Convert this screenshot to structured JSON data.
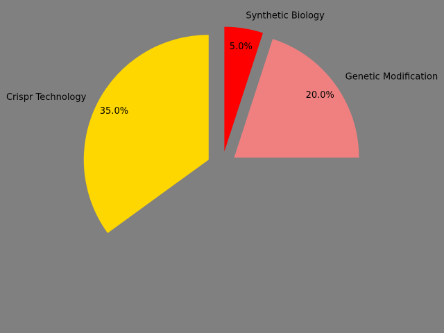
{
  "chart_data": {
    "type": "pie",
    "title": "",
    "background": "#808080",
    "slices": [
      {
        "label": "Genetic Modification",
        "value": 20.0,
        "pct_label": "20.0%",
        "color": "#F08080",
        "exploded": true
      },
      {
        "label": "Synthetic Biology",
        "value": 5.0,
        "pct_label": "5.0%",
        "color": "#FF0000",
        "exploded": true
      },
      {
        "label": "Crispr Technology",
        "value": 35.0,
        "pct_label": "35.0%",
        "color": "#FFD700",
        "exploded": true
      }
    ],
    "unlabeled_remainder_percent": 40.0
  }
}
